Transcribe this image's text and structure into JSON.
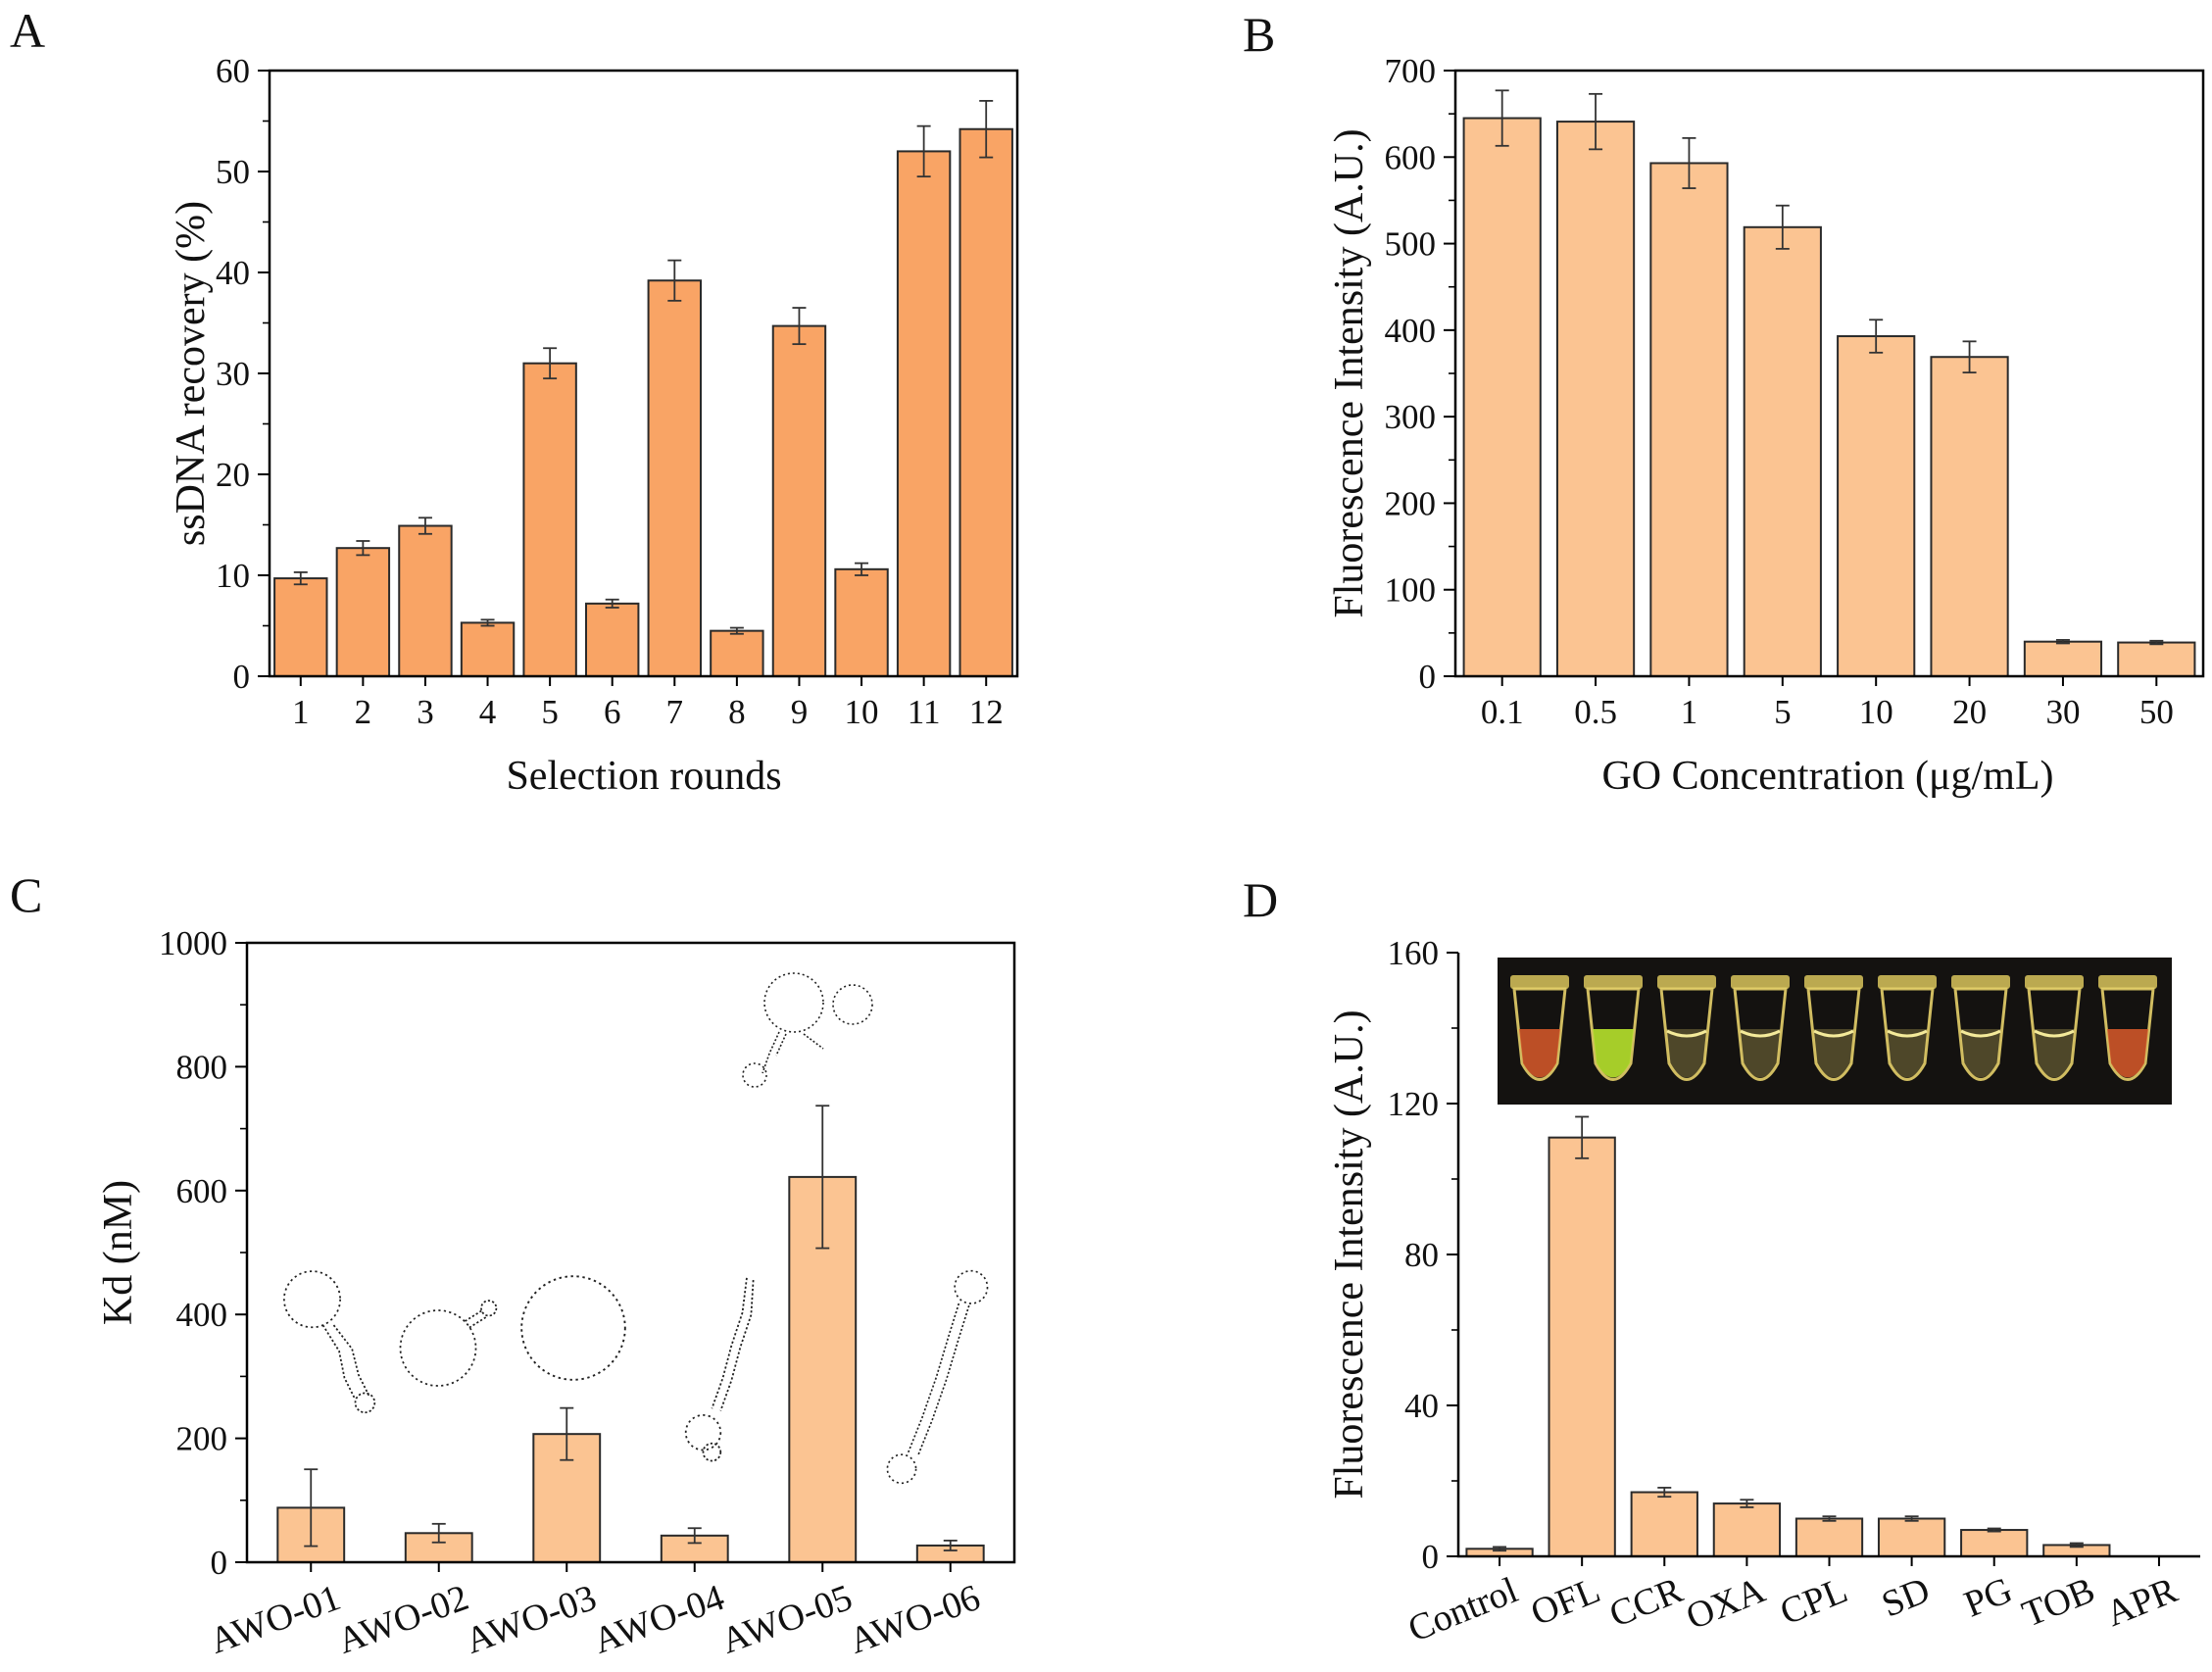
{
  "colors": {
    "bar_dark": "#F9A465",
    "bar_light": "#FBC492",
    "edge": "#2a2a2a",
    "photo_bg": "#141210",
    "tube_glow": "#e6d06a",
    "tube_green": "#b6e22c",
    "tube_red": "#d95a2a"
  },
  "chart_data": [
    {
      "panel": "A",
      "type": "bar",
      "title": "",
      "xlabel": "Selection rounds",
      "ylabel": "ssDNA recovery (%)",
      "categories": [
        "1",
        "2",
        "3",
        "4",
        "5",
        "6",
        "7",
        "8",
        "9",
        "10",
        "11",
        "12"
      ],
      "values": [
        9.7,
        12.7,
        14.9,
        5.3,
        31.0,
        7.2,
        39.2,
        4.5,
        34.7,
        10.6,
        52.0,
        54.2
      ],
      "errors": [
        0.6,
        0.7,
        0.8,
        0.3,
        1.5,
        0.4,
        2.0,
        0.3,
        1.8,
        0.6,
        2.5,
        2.8
      ],
      "ylim": [
        0,
        60
      ],
      "yticks": [
        0,
        10,
        20,
        30,
        40,
        50,
        60
      ],
      "ytick_labels": [
        "0",
        "10",
        "20",
        "30",
        "40",
        "50",
        "60"
      ]
    },
    {
      "panel": "B",
      "type": "bar",
      "title": "",
      "xlabel": "GO Concentration (μg/mL)",
      "ylabel": "Fluorescence Intensity (A.U.)",
      "categories": [
        "0.1",
        "0.5",
        "1",
        "5",
        "10",
        "20",
        "30",
        "50"
      ],
      "values": [
        645,
        641,
        593,
        519,
        393,
        369,
        40,
        39
      ],
      "errors": [
        32,
        32,
        29,
        25,
        19,
        18,
        2,
        2
      ],
      "ylim": [
        0,
        700
      ],
      "yticks": [
        0,
        100,
        200,
        300,
        400,
        500,
        600,
        700
      ],
      "ytick_labels": [
        "0",
        "100",
        "200",
        "300",
        "400",
        "500",
        "600",
        "700"
      ]
    },
    {
      "panel": "C",
      "type": "bar",
      "title": "",
      "xlabel": "",
      "ylabel": "Kd (nM)",
      "categories": [
        "AWO-01",
        "AWO-02",
        "AWO-03",
        "AWO-04",
        "AWO-05",
        "AWO-06"
      ],
      "values": [
        88,
        47,
        207,
        43,
        622,
        27
      ],
      "errors": [
        62,
        15,
        42,
        12,
        115,
        8
      ],
      "ylim": [
        0,
        1000
      ],
      "yticks": [
        0,
        200,
        400,
        600,
        800,
        1000
      ],
      "ytick_labels": [
        "0",
        "200",
        "400",
        "600",
        "800",
        "1000"
      ],
      "annotations": "aptamer secondary-structure sketch above each bar"
    },
    {
      "panel": "D",
      "type": "bar",
      "title": "",
      "xlabel": "",
      "ylabel": "Fluorescence Intensity (A.U.)",
      "categories": [
        "Control",
        "OFL",
        "CCR",
        "OXA",
        "CPL",
        "SD",
        "PG",
        "TOB",
        "APR"
      ],
      "values": [
        2,
        111,
        17,
        14,
        10,
        10,
        7,
        3,
        0
      ],
      "errors": [
        0.5,
        5.5,
        1.2,
        1.0,
        0.6,
        0.6,
        0.4,
        0.5,
        0
      ],
      "ylim": [
        0,
        160
      ],
      "yticks": [
        0,
        40,
        80,
        120,
        160
      ],
      "ytick_labels": [
        "0",
        "40",
        "80",
        "120",
        "160"
      ],
      "annotations": "inset photo of nine tubes under UV light"
    }
  ],
  "panels": {
    "a": "A",
    "b": "B",
    "c": "C",
    "d": "D"
  },
  "inset_tubes": [
    "red",
    "green",
    "yellow",
    "yellow",
    "yellow",
    "yellow",
    "yellow",
    "yellow",
    "red"
  ]
}
